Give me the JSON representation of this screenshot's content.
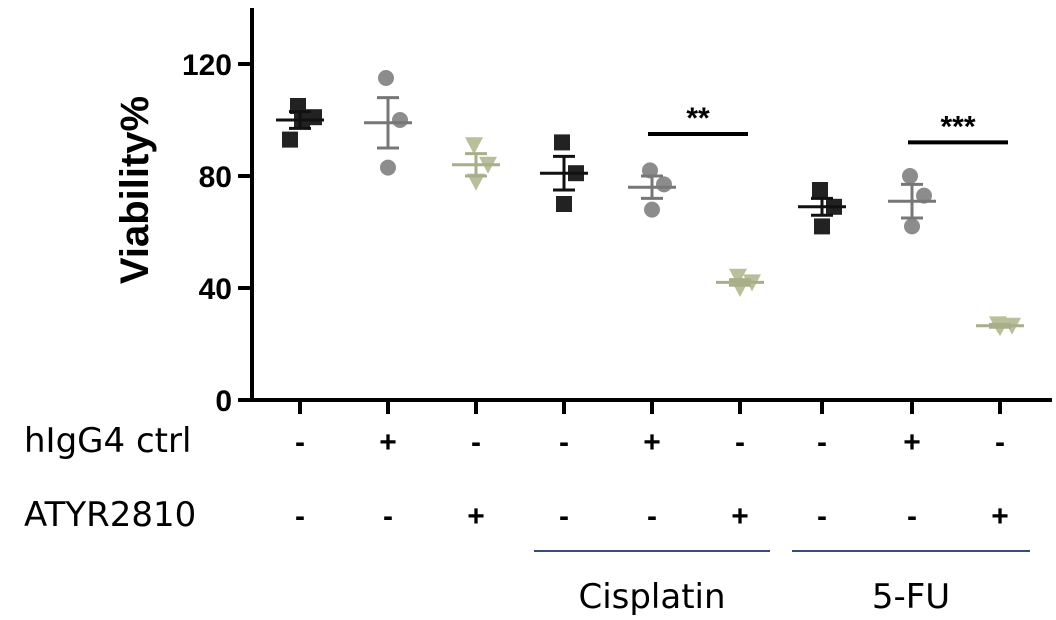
{
  "chart_data": {
    "type": "scatter",
    "ylabel": "Viability%",
    "ylim": [
      0,
      140
    ],
    "yticks": [
      "0",
      "40",
      "80",
      "120"
    ],
    "conditions": [
      {
        "hIgG4": "-",
        "ATYR2810": "-",
        "marker": "square",
        "color": "#222222",
        "points": [
          93,
          100,
          101,
          105
        ],
        "mean": 100,
        "sem": 3
      },
      {
        "hIgG4": "+",
        "ATYR2810": "-",
        "marker": "circle",
        "color": "#8c8c8c",
        "points": [
          83,
          100,
          115
        ],
        "mean": 99,
        "sem": 9
      },
      {
        "hIgG4": "-",
        "ATYR2810": "+",
        "marker": "triangle",
        "color": "#b9bf9a",
        "points": [
          78,
          84,
          91
        ],
        "mean": 84,
        "sem": 4
      },
      {
        "hIgG4": "-",
        "ATYR2810": "-",
        "marker": "square",
        "color": "#222222",
        "points": [
          70,
          81,
          92
        ],
        "mean": 81,
        "sem": 6
      },
      {
        "hIgG4": "+",
        "ATYR2810": "-",
        "marker": "circle",
        "color": "#8c8c8c",
        "points": [
          68,
          77,
          82
        ],
        "mean": 76,
        "sem": 4
      },
      {
        "hIgG4": "-",
        "ATYR2810": "+",
        "marker": "triangle",
        "color": "#b9bf9a",
        "points": [
          40,
          42,
          44
        ],
        "mean": 42,
        "sem": 1
      },
      {
        "hIgG4": "-",
        "ATYR2810": "-",
        "marker": "square",
        "color": "#222222",
        "points": [
          62,
          69,
          75
        ],
        "mean": 69,
        "sem": 3
      },
      {
        "hIgG4": "+",
        "ATYR2810": "-",
        "marker": "circle",
        "color": "#8c8c8c",
        "points": [
          62,
          73,
          80
        ],
        "mean": 71,
        "sem": 6
      },
      {
        "hIgG4": "-",
        "ATYR2810": "+",
        "marker": "triangle",
        "color": "#b9bf9a",
        "points": [
          26,
          26.5,
          27
        ],
        "mean": 26.5,
        "sem": 0.5
      }
    ],
    "row_labels": [
      "hIgG4 ctrl",
      "ATYR2810"
    ],
    "groups": [
      {
        "label": "Cisplatin",
        "from": 3,
        "to": 5
      },
      {
        "label": "5-FU",
        "from": 6,
        "to": 8
      }
    ],
    "significance": [
      {
        "text": "**",
        "from": 4,
        "to": 5,
        "y": 95
      },
      {
        "text": "***",
        "from": 7,
        "to": 8,
        "y": 92
      }
    ],
    "group_line_color": "#3a4a7a"
  }
}
